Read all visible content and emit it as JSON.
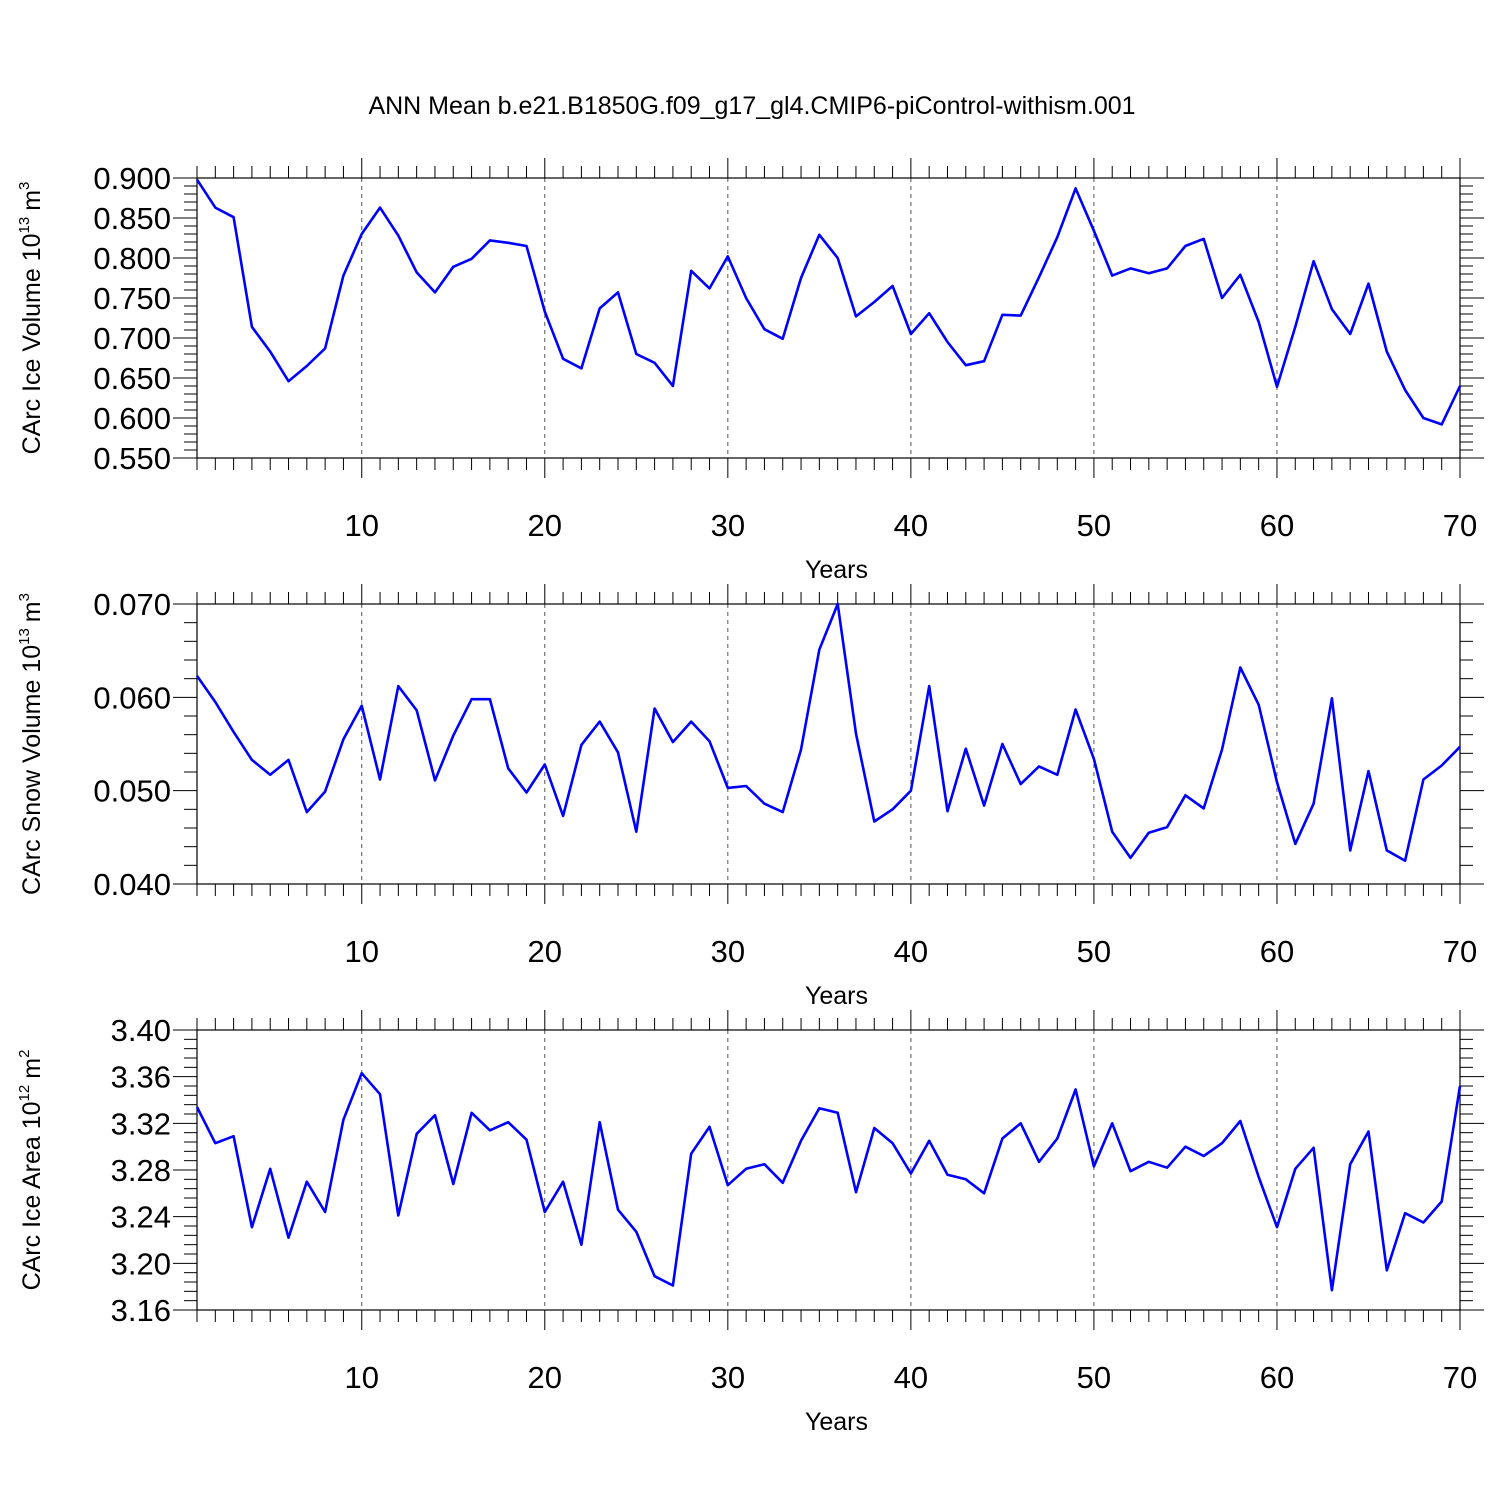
{
  "title": "ANN Mean b.e21.B1850G.f09_g17_gl4.CMIP6-piControl-withism.001",
  "colors": {
    "line": "#0000ff",
    "axes": "#000000",
    "grid": "#555555"
  },
  "chart_data": [
    {
      "type": "line",
      "ylabel": {
        "text": "CArc Ice Volume 10",
        "exponent": "13",
        "unit": "m",
        "unit_exponent": "3"
      },
      "xlabel": "Years",
      "xlim": [
        1,
        70
      ],
      "ylim": [
        0.55,
        0.9
      ],
      "yticks": [
        0.55,
        0.6,
        0.65,
        0.7,
        0.75,
        0.8,
        0.85,
        0.9
      ],
      "ytick_labels": [
        "0.550",
        "0.600",
        "0.650",
        "0.700",
        "0.750",
        "0.800",
        "0.850",
        "0.900"
      ],
      "xticks": [
        10,
        20,
        30,
        40,
        50,
        60,
        70
      ],
      "xtick_labels": [
        "10",
        "20",
        "30",
        "40",
        "50",
        "60",
        "70"
      ],
      "grid": "vertical dashed at major x ticks",
      "series": [
        {
          "x": [
            1,
            2,
            3,
            4,
            5,
            6,
            7,
            8,
            9,
            10,
            11,
            12,
            13,
            14,
            15,
            16,
            17,
            18,
            19,
            20,
            21,
            22,
            23,
            24,
            25,
            26,
            27,
            28,
            29,
            30,
            31,
            32,
            33,
            34,
            35,
            36,
            37,
            38,
            39,
            40,
            41,
            42,
            43,
            44,
            45,
            46,
            47,
            48,
            49,
            50,
            51,
            52,
            53,
            54,
            55,
            56,
            57,
            58,
            59,
            60,
            61,
            62,
            63,
            64,
            65,
            66,
            67,
            68,
            69,
            70
          ],
          "values": [
            0.898,
            0.863,
            0.851,
            0.714,
            0.683,
            0.646,
            0.665,
            0.687,
            0.778,
            0.83,
            0.863,
            0.828,
            0.782,
            0.757,
            0.789,
            0.799,
            0.822,
            0.819,
            0.815,
            0.733,
            0.674,
            0.662,
            0.737,
            0.757,
            0.68,
            0.669,
            0.64,
            0.784,
            0.762,
            0.802,
            0.75,
            0.711,
            0.699,
            0.775,
            0.829,
            0.8,
            0.727,
            0.745,
            0.765,
            0.705,
            0.731,
            0.695,
            0.666,
            0.671,
            0.729,
            0.728,
            0.776,
            0.826,
            0.887,
            0.834,
            0.778,
            0.787,
            0.781,
            0.787,
            0.815,
            0.824,
            0.75,
            0.779,
            0.72,
            0.639,
            0.714,
            0.796,
            0.736,
            0.705,
            0.768,
            0.683,
            0.635,
            0.6,
            0.592,
            0.64
          ]
        }
      ]
    },
    {
      "type": "line",
      "ylabel": {
        "text": "CArc Snow Volume 10",
        "exponent": "13",
        "unit": "m",
        "unit_exponent": "3"
      },
      "xlabel": "Years",
      "xlim": [
        1,
        70
      ],
      "ylim": [
        0.04,
        0.07
      ],
      "yticks": [
        0.04,
        0.05,
        0.06,
        0.07
      ],
      "ytick_labels": [
        "0.040",
        "0.050",
        "0.060",
        "0.070"
      ],
      "xticks": [
        10,
        20,
        30,
        40,
        50,
        60,
        70
      ],
      "xtick_labels": [
        "10",
        "20",
        "30",
        "40",
        "50",
        "60",
        "70"
      ],
      "grid": "vertical dashed at major x ticks",
      "series": [
        {
          "x": [
            1,
            2,
            3,
            4,
            5,
            6,
            7,
            8,
            9,
            10,
            11,
            12,
            13,
            14,
            15,
            16,
            17,
            18,
            19,
            20,
            21,
            22,
            23,
            24,
            25,
            26,
            27,
            28,
            29,
            30,
            31,
            32,
            33,
            34,
            35,
            36,
            37,
            38,
            39,
            40,
            41,
            42,
            43,
            44,
            45,
            46,
            47,
            48,
            49,
            50,
            51,
            52,
            53,
            54,
            55,
            56,
            57,
            58,
            59,
            60,
            61,
            62,
            63,
            64,
            65,
            66,
            67,
            68,
            69,
            70
          ],
          "values": [
            0.0623,
            0.0595,
            0.0563,
            0.0533,
            0.0517,
            0.0533,
            0.0477,
            0.0499,
            0.0555,
            0.0591,
            0.0512,
            0.0612,
            0.0586,
            0.0511,
            0.0559,
            0.0598,
            0.0598,
            0.0524,
            0.0498,
            0.0528,
            0.0473,
            0.0549,
            0.0574,
            0.0541,
            0.0456,
            0.0588,
            0.0552,
            0.0574,
            0.0553,
            0.0503,
            0.0505,
            0.0486,
            0.0477,
            0.0544,
            0.0651,
            0.07,
            0.0561,
            0.0467,
            0.048,
            0.05,
            0.0612,
            0.0478,
            0.0545,
            0.0484,
            0.055,
            0.0507,
            0.0526,
            0.0517,
            0.0587,
            0.0534,
            0.0456,
            0.0428,
            0.0455,
            0.0461,
            0.0495,
            0.0481,
            0.0544,
            0.0632,
            0.0592,
            0.0509,
            0.0443,
            0.0486,
            0.0599,
            0.0436,
            0.0521,
            0.0436,
            0.0425,
            0.0512,
            0.0527,
            0.0547
          ]
        }
      ]
    },
    {
      "type": "line",
      "ylabel": {
        "text": "CArc Ice Area 10",
        "exponent": "12",
        "unit": "m",
        "unit_exponent": "2"
      },
      "xlabel": "Years",
      "xlim": [
        1,
        70
      ],
      "ylim": [
        3.16,
        3.4
      ],
      "yticks": [
        3.16,
        3.2,
        3.24,
        3.28,
        3.32,
        3.36,
        3.4
      ],
      "ytick_labels": [
        "3.16",
        "3.20",
        "3.24",
        "3.28",
        "3.32",
        "3.36",
        "3.40"
      ],
      "xticks": [
        10,
        20,
        30,
        40,
        50,
        60,
        70
      ],
      "xtick_labels": [
        "10",
        "20",
        "30",
        "40",
        "50",
        "60",
        "70"
      ],
      "grid": "vertical dashed at major x ticks",
      "series": [
        {
          "x": [
            1,
            2,
            3,
            4,
            5,
            6,
            7,
            8,
            9,
            10,
            11,
            12,
            13,
            14,
            15,
            16,
            17,
            18,
            19,
            20,
            21,
            22,
            23,
            24,
            25,
            26,
            27,
            28,
            29,
            30,
            31,
            32,
            33,
            34,
            35,
            36,
            37,
            38,
            39,
            40,
            41,
            42,
            43,
            44,
            45,
            46,
            47,
            48,
            49,
            50,
            51,
            52,
            53,
            54,
            55,
            56,
            57,
            58,
            59,
            60,
            61,
            62,
            63,
            64,
            65,
            66,
            67,
            68,
            69,
            70
          ],
          "values": [
            3.334,
            3.303,
            3.309,
            3.231,
            3.281,
            3.222,
            3.27,
            3.244,
            3.323,
            3.363,
            3.345,
            3.241,
            3.311,
            3.327,
            3.268,
            3.329,
            3.314,
            3.321,
            3.306,
            3.244,
            3.27,
            3.216,
            3.321,
            3.246,
            3.227,
            3.189,
            3.181,
            3.294,
            3.317,
            3.267,
            3.281,
            3.285,
            3.269,
            3.305,
            3.333,
            3.329,
            3.261,
            3.316,
            3.303,
            3.277,
            3.305,
            3.276,
            3.272,
            3.26,
            3.307,
            3.32,
            3.287,
            3.307,
            3.349,
            3.283,
            3.32,
            3.279,
            3.287,
            3.282,
            3.3,
            3.292,
            3.303,
            3.322,
            3.274,
            3.231,
            3.281,
            3.299,
            3.177,
            3.285,
            3.313,
            3.194,
            3.243,
            3.235,
            3.253,
            3.352
          ]
        }
      ]
    }
  ]
}
